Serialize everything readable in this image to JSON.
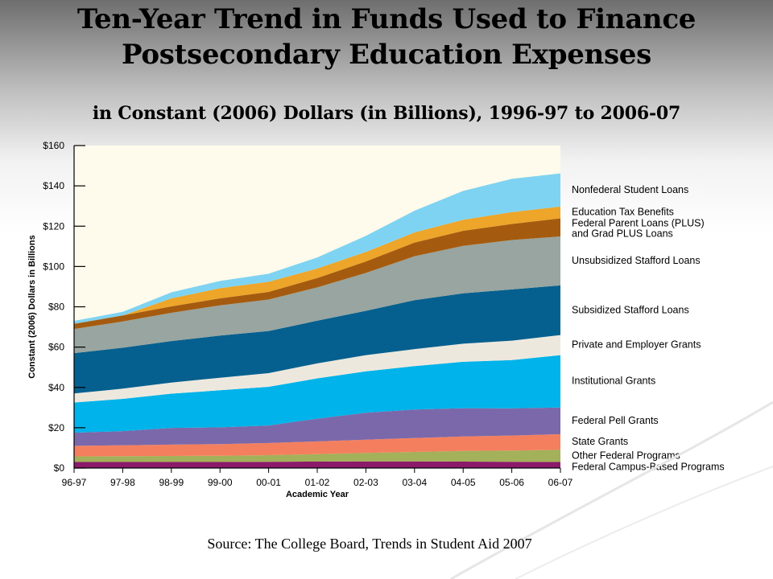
{
  "title": "Ten-Year Trend in Funds Used to Finance Postsecondary Education Expenses",
  "subtitle": "in Constant (2006) Dollars (in Billions), 1996-97 to 2006-07",
  "source": "Source: The College Board, Trends in Student Aid 2007",
  "chart_data": {
    "type": "area",
    "stacked": true,
    "categories": [
      "96-97",
      "97-98",
      "98-99",
      "99-00",
      "00-01",
      "01-02",
      "02-03",
      "03-04",
      "04-05",
      "05-06",
      "06-07"
    ],
    "xlabel": "Academic Year",
    "ylabel": "Constant (2006) Dollars in Billions",
    "ylim": [
      0,
      160
    ],
    "yticks": [
      "$0",
      "$20",
      "$40",
      "$60",
      "$80",
      "$100",
      "$120",
      "$140",
      "$160"
    ],
    "yticks_values": [
      0,
      20,
      40,
      60,
      80,
      100,
      120,
      140,
      160
    ],
    "background_color": "#fffbec",
    "grid": false,
    "legend_position": "right",
    "series": [
      {
        "name": "Federal Campus-Based Programs",
        "color": "#8b1a6b",
        "values": [
          3.0,
          3.0,
          3.0,
          3.0,
          3.1,
          3.2,
          3.3,
          3.3,
          3.2,
          3.1,
          3.0
        ]
      },
      {
        "name": "Other Federal Programs",
        "color": "#a3b15a",
        "values": [
          2.8,
          2.9,
          3.0,
          3.1,
          3.3,
          3.7,
          4.2,
          4.7,
          5.3,
          5.6,
          6.0
        ]
      },
      {
        "name": "State Grants",
        "color": "#f47f5e",
        "values": [
          5.2,
          5.4,
          5.6,
          5.8,
          6.0,
          6.3,
          6.6,
          6.9,
          7.2,
          7.4,
          7.8
        ]
      },
      {
        "name": "Federal Pell Grants",
        "color": "#7b68aa",
        "values": [
          6.5,
          7.0,
          8.3,
          8.3,
          8.7,
          11.3,
          13.3,
          14.1,
          14.0,
          13.5,
          13.2
        ]
      },
      {
        "name": "Institutional Grants",
        "color": "#00b3ea",
        "values": [
          15.0,
          16.0,
          17.0,
          18.4,
          19.2,
          20.0,
          20.6,
          21.6,
          23.0,
          24.0,
          26.0
        ]
      },
      {
        "name": "Private and Employer Grants",
        "color": "#ede8de",
        "values": [
          4.5,
          5.1,
          5.5,
          6.2,
          6.8,
          7.4,
          8.0,
          8.4,
          9.0,
          9.6,
          10.0
        ]
      },
      {
        "name": "Subsidized Stafford Loans",
        "color": "#05608f",
        "values": [
          20.0,
          20.3,
          20.6,
          20.9,
          20.9,
          21.2,
          22.0,
          24.3,
          25.0,
          25.4,
          24.6
        ]
      },
      {
        "name": "Unsubsidized Stafford Loans",
        "color": "#98a5a0",
        "values": [
          12.0,
          13.0,
          14.0,
          15.0,
          15.6,
          16.5,
          18.8,
          21.8,
          23.5,
          24.5,
          24.3
        ]
      },
      {
        "name": "Federal Parent Loans (PLUS) and Grad PLUS Loans",
        "color": "#a55b0f",
        "values": [
          2.6,
          3.0,
          3.2,
          3.5,
          3.8,
          4.7,
          5.7,
          6.8,
          7.5,
          8.0,
          9.0
        ]
      },
      {
        "name": "Education Tax Benefits",
        "color": "#eda52a",
        "values": [
          0.0,
          0.0,
          4.0,
          5.0,
          5.0,
          4.7,
          4.7,
          5.0,
          5.5,
          5.9,
          5.8
        ]
      },
      {
        "name": "Nonfederal Student Loans",
        "color": "#7fd3f2",
        "values": [
          1.4,
          1.8,
          3.0,
          3.6,
          4.0,
          5.5,
          8.0,
          10.8,
          14.3,
          16.5,
          16.5
        ]
      }
    ],
    "legend_labels": [
      {
        "series": 10,
        "lines": [
          "Nonfederal Student Loans"
        ]
      },
      {
        "series": 9,
        "lines": [
          "Education Tax Benefits"
        ]
      },
      {
        "series": 8,
        "lines": [
          "Federal Parent Loans (PLUS)",
          "and Grad PLUS Loans"
        ]
      },
      {
        "series": 7,
        "lines": [
          "Unsubsidized Stafford Loans"
        ]
      },
      {
        "series": 6,
        "lines": [
          "Subsidized Stafford Loans"
        ]
      },
      {
        "series": 5,
        "lines": [
          "Private and Employer Grants"
        ]
      },
      {
        "series": 4,
        "lines": [
          "Institutional Grants"
        ]
      },
      {
        "series": 3,
        "lines": [
          "Federal Pell Grants"
        ]
      },
      {
        "series": 2,
        "lines": [
          "State Grants"
        ]
      },
      {
        "series": 1,
        "lines": [
          "Other Federal Programs"
        ]
      },
      {
        "series": 0,
        "lines": [
          "Federal Campus-Based Programs"
        ]
      }
    ]
  }
}
